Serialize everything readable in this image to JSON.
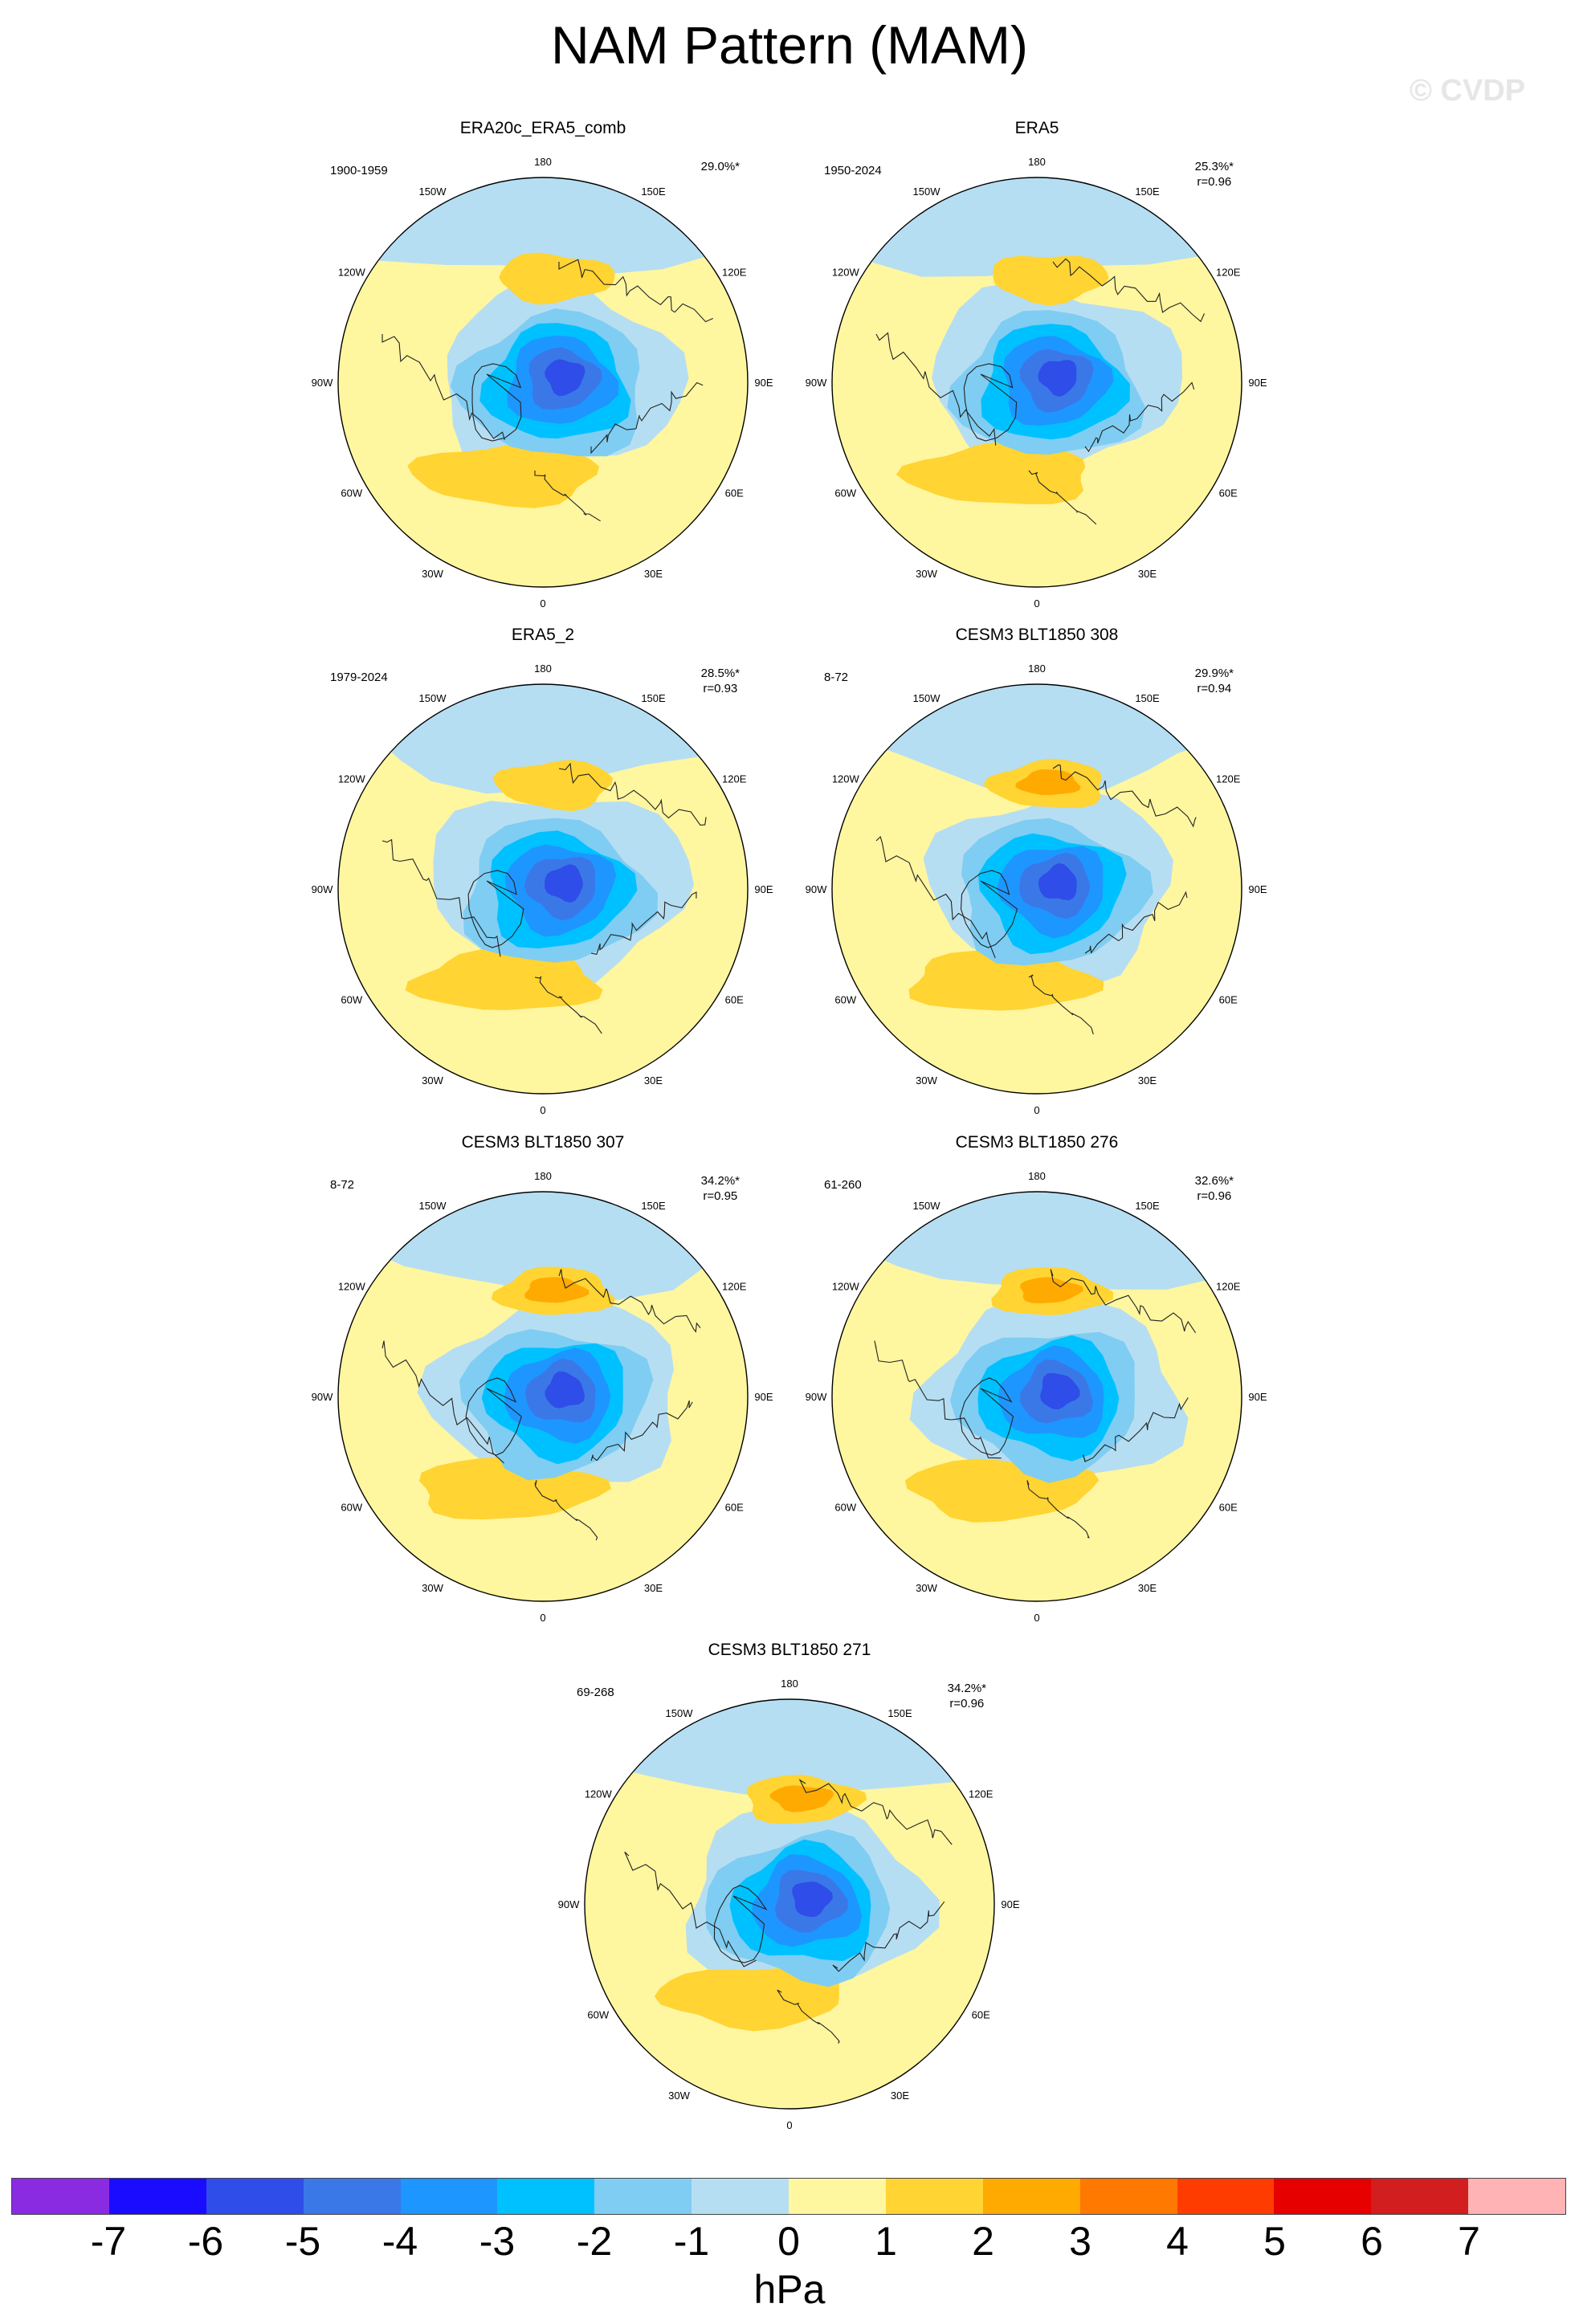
{
  "title": "NAM Pattern (MAM)",
  "watermark": "© CVDP",
  "longitude_labels": [
    "180",
    "150E",
    "120E",
    "90E",
    "60E",
    "30E",
    "0",
    "30W",
    "60W",
    "90W",
    "120W",
    "150W"
  ],
  "panels": [
    {
      "name": "ERA20c_ERA5_comb",
      "years": "1900-1959",
      "pct": "29.0%*",
      "r": ""
    },
    {
      "name": "ERA5",
      "years": "1950-2024",
      "pct": "25.3%*",
      "r": "r=0.96"
    },
    {
      "name": "ERA5_2",
      "years": "1979-2024",
      "pct": "28.5%*",
      "r": "r=0.93"
    },
    {
      "name": "CESM3 BLT1850 308",
      "years": "8-72",
      "pct": "29.9%*",
      "r": "r=0.94"
    },
    {
      "name": "CESM3 BLT1850 307",
      "years": "8-72",
      "pct": "34.2%*",
      "r": "r=0.95"
    },
    {
      "name": "CESM3 BLT1850 276",
      "years": "61-260",
      "pct": "32.6%*",
      "r": "r=0.96"
    },
    {
      "name": "CESM3 BLT1850 271",
      "years": "69-268",
      "pct": "34.2%*",
      "r": "r=0.96"
    }
  ],
  "colorbar": {
    "colors": [
      "#8a2be2",
      "#1a0dff",
      "#2f4de8",
      "#3a78e8",
      "#1e96ff",
      "#00c1ff",
      "#7fcdf2",
      "#b6def2",
      "#fff6a0",
      "#ffd433",
      "#ffaa00",
      "#ff7800",
      "#ff3c00",
      "#e60000",
      "#d21e1e",
      "#ffb3b5"
    ],
    "labels": [
      "-7",
      "-6",
      "-5",
      "-4",
      "-3",
      "-2",
      "-1",
      "0",
      "1",
      "2",
      "3",
      "4",
      "5",
      "6",
      "7"
    ],
    "units": "hPa"
  }
}
